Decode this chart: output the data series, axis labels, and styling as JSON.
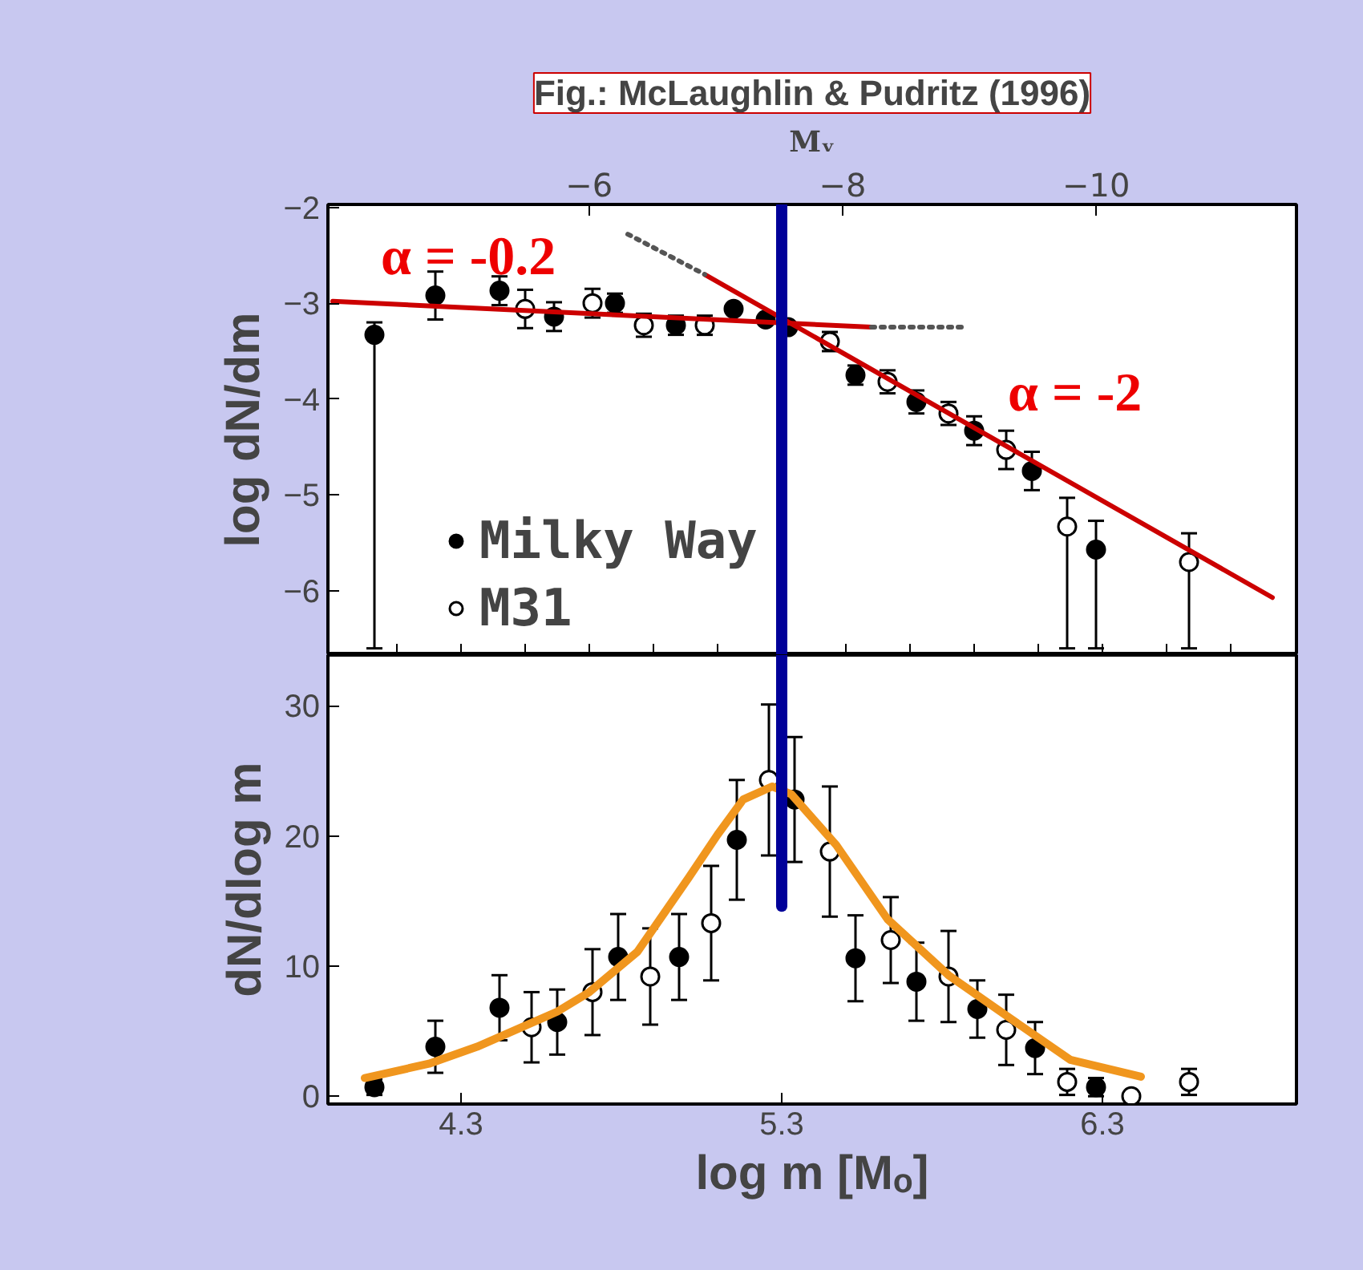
{
  "chart_data": [
    {
      "type": "scatter",
      "title": "Fig.: McLaughlin & Pudritz (1996)",
      "ylabel": "log dN/dm",
      "x2label": "Mᵥ",
      "xlim": [
        3.885,
        6.905
      ],
      "xticks": [
        {
          "value": 4.1,
          "label": null
        },
        {
          "value": 4.3,
          "label": null
        },
        {
          "value": 4.5,
          "label": null
        },
        {
          "value": 4.7,
          "label": null
        },
        {
          "value": 4.9,
          "label": null
        },
        {
          "value": 5.1,
          "label": null
        },
        {
          "value": 5.3,
          "label": null
        },
        {
          "value": 5.5,
          "label": null
        },
        {
          "value": 5.7,
          "label": null
        },
        {
          "value": 5.9,
          "label": null
        },
        {
          "value": 6.1,
          "label": null
        },
        {
          "value": 6.3,
          "label": null
        },
        {
          "value": 6.5,
          "label": null
        },
        {
          "value": 6.7,
          "label": null
        }
      ],
      "x2lim": [
        -3.94,
        -11.58
      ],
      "x2ticks": [
        -6,
        -8,
        -10
      ],
      "ylim": [
        -6.67,
        -1.97
      ],
      "yticks": [
        -2,
        -3,
        -4,
        -5,
        -6
      ],
      "tick_labels": "y",
      "grid": false,
      "legend": "bottom left",
      "marker": "circle",
      "series": [
        {
          "name": "Milky Way",
          "color": "#000000",
          "x": [
            4.03,
            4.22,
            4.42,
            4.59,
            4.78,
            4.97,
            5.15,
            5.25,
            5.32,
            5.53,
            5.72,
            5.9,
            6.08,
            6.28
          ],
          "values": [
            -3.33,
            -2.92,
            -2.87,
            -3.14,
            -3.0,
            -3.23,
            -3.06,
            -3.17,
            -3.25,
            -3.75,
            -4.03,
            -4.33,
            -4.75,
            -5.57
          ],
          "errors": [
            [
              -6.6,
              -3.2
            ],
            0.25,
            0.15,
            0.15,
            0.1,
            0.1,
            0.05,
            0.05,
            0.05,
            0.1,
            0.12,
            0.15,
            0.2,
            [
              -6.6,
              -5.27
            ]
          ]
        },
        {
          "name": "M31",
          "color": "#ffffff",
          "x": [
            4.5,
            4.71,
            4.87,
            5.06,
            5.45,
            5.63,
            5.82,
            6.0,
            6.19,
            6.57
          ],
          "values": [
            -3.06,
            -3.0,
            -3.23,
            -3.23,
            -3.4,
            -3.82,
            -4.15,
            -4.53,
            -5.33,
            -5.7
          ],
          "errors": [
            0.2,
            0.15,
            0.12,
            0.1,
            0.1,
            0.12,
            0.12,
            0.2,
            [
              -6.6,
              -5.03
            ],
            [
              -6.6,
              -5.4
            ]
          ]
        },
        {
          "type": "line",
          "marker": "none",
          "color": "#cc0000",
          "x": [
            3.9,
            5.58
          ],
          "values": [
            -2.98,
            -3.25
          ]
        },
        {
          "type": "line",
          "marker": "none",
          "color": "#cc0000",
          "x": [
            5.06,
            6.83
          ],
          "values": [
            -2.7,
            -6.07
          ]
        },
        {
          "type": "line",
          "marker": "none",
          "color": "#555555",
          "line_style": "dotted",
          "x": [
            4.82,
            5.06
          ],
          "values": [
            -2.28,
            -2.7
          ]
        },
        {
          "type": "line",
          "marker": "none",
          "color": "#555555",
          "line_style": "dotted",
          "x": [
            5.58,
            5.87
          ],
          "values": [
            -3.25,
            -3.25
          ]
        }
      ],
      "ref_lines": [
        {
          "axis": "x",
          "value": 5.3,
          "color": "#000099"
        }
      ],
      "annotations": [
        "α = -0.2",
        "α = -2"
      ]
    },
    {
      "type": "scatter",
      "xlabel": "log m [Mₒ]",
      "ylabel": "dN/dlog m",
      "xlim": [
        3.885,
        6.905
      ],
      "xticks": [
        4.3,
        5.3,
        6.3
      ],
      "ylim": [
        -0.6,
        33.9
      ],
      "yticks": [
        0,
        10,
        20,
        30
      ],
      "grid": false,
      "marker": "circle",
      "series": [
        {
          "color": "#000000",
          "x": [
            4.03,
            4.22,
            4.42,
            4.6,
            4.79,
            4.98,
            5.16,
            5.34,
            5.53,
            5.72,
            5.91,
            6.09,
            6.28
          ],
          "values": [
            0.7,
            3.8,
            6.8,
            5.7,
            10.7,
            10.7,
            19.7,
            22.8,
            10.6,
            8.8,
            6.7,
            3.7,
            0.7
          ],
          "errors": [
            0.6,
            2,
            2.5,
            2.5,
            3.3,
            3.3,
            4.6,
            4.8,
            3.3,
            3,
            2.2,
            2,
            0.7
          ]
        },
        {
          "color": "#ffffff",
          "x": [
            4.52,
            4.71,
            4.89,
            5.08,
            5.26,
            5.45,
            5.64,
            5.82,
            6.0,
            6.19,
            6.39,
            6.57
          ],
          "values": [
            5.3,
            8.0,
            9.2,
            13.3,
            24.3,
            18.8,
            12.0,
            9.2,
            5.1,
            1.1,
            0,
            1.1
          ],
          "errors": [
            2.7,
            3.3,
            3.7,
            4.4,
            5.8,
            5,
            3.3,
            3.5,
            2.7,
            1,
            null,
            1
          ]
        },
        {
          "type": "line",
          "marker": "none",
          "color": "#f0961e",
          "x": [
            4.0,
            4.2,
            4.35,
            4.6,
            4.7,
            4.85,
            5.01,
            5.1,
            5.18,
            5.27,
            5.33,
            5.47,
            5.63,
            5.82,
            6.0,
            6.2,
            6.42
          ],
          "values": [
            1.4,
            2.5,
            3.8,
            6.5,
            8.0,
            11.1,
            16.8,
            20.1,
            22.8,
            23.8,
            23.2,
            19.3,
            13.6,
            9.3,
            6.2,
            2.8,
            1.5
          ]
        },
        {
          "type": "line",
          "marker": "none",
          "color": "#000099",
          "x": [
            5.3,
            5.3
          ],
          "values": [
            14.6,
            33.9
          ]
        }
      ]
    }
  ]
}
